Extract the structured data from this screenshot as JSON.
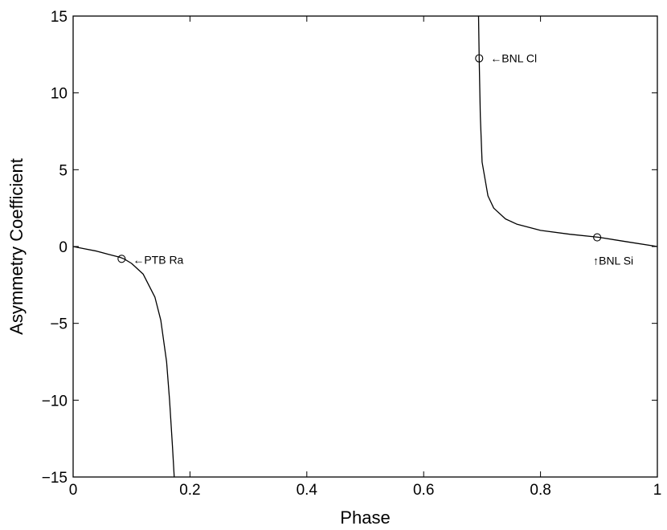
{
  "chart_data": {
    "type": "line",
    "title": "",
    "xlabel": "Phase",
    "ylabel": "Asymmetry Coefficient",
    "xlim": [
      0,
      1
    ],
    "ylim": [
      -15,
      15
    ],
    "xticks": [
      0,
      0.2,
      0.4,
      0.6,
      0.8,
      1
    ],
    "xtick_labels": [
      "0",
      "0.2",
      "0.4",
      "0.6",
      "0.8",
      "1"
    ],
    "yticks": [
      -15,
      -10,
      -5,
      0,
      5,
      10,
      15
    ],
    "ytick_labels": [
      "−15",
      "−10",
      "−5",
      "0",
      "5",
      "10",
      "15"
    ],
    "grid": false,
    "line_color": "#000000",
    "series": [
      {
        "x": [
          0,
          0.02,
          0.04,
          0.06,
          0.08,
          0.087,
          0.1,
          0.12,
          0.14,
          0.15,
          0.16,
          0.165,
          0.17,
          0.173
        ],
        "y": [
          0,
          -0.15,
          -0.3,
          -0.5,
          -0.7,
          -0.8,
          -1.1,
          -1.8,
          -3.3,
          -4.8,
          -7.5,
          -10.0,
          -13.0,
          -15
        ]
      },
      {
        "x": [
          0.694,
          0.695,
          0.697,
          0.7,
          0.71,
          0.72,
          0.74,
          0.76,
          0.8,
          0.85,
          0.9,
          0.95,
          1.0
        ],
        "y": [
          15,
          12.2,
          8.5,
          5.5,
          3.3,
          2.5,
          1.8,
          1.45,
          1.05,
          0.8,
          0.6,
          0.3,
          0
        ]
      }
    ],
    "markers": [
      {
        "x": 0.083,
        "y": -0.8,
        "label": "←PTB Ra",
        "label_dx": 14,
        "label_dy": 6
      },
      {
        "x": 0.695,
        "y": 12.25,
        "label": "←BNL Cl",
        "label_dx": 14,
        "label_dy": 5
      },
      {
        "x": 0.897,
        "y": 0.6,
        "label": "↑BNL Si",
        "label_dx": -5,
        "label_dy": 34
      }
    ]
  }
}
